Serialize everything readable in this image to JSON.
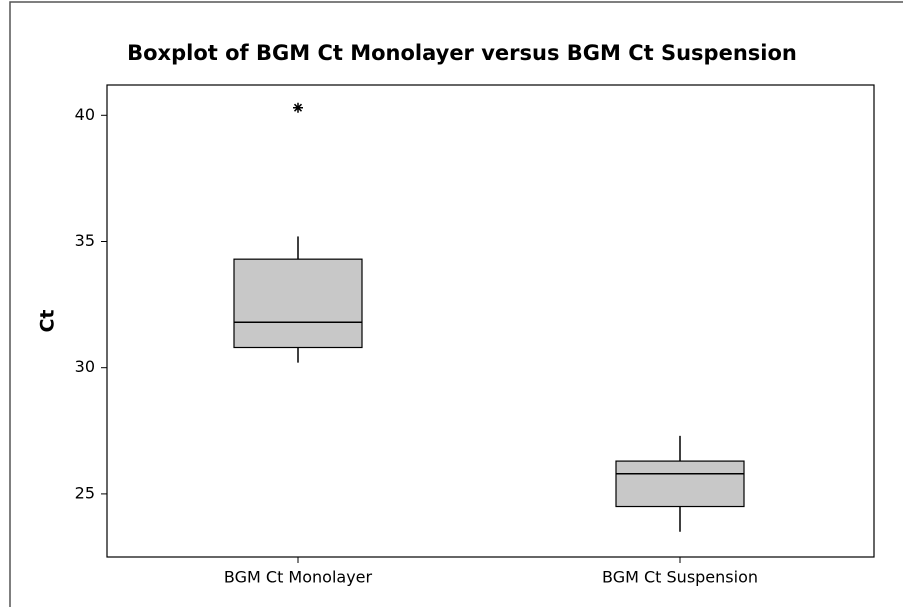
{
  "chart_data": {
    "type": "box",
    "title": "Boxplot of BGM Ct Monolayer versus BGM Ct Suspension",
    "ylabel": "Ct",
    "categories": [
      "BGM Ct Monolayer",
      "BGM Ct Suspension"
    ],
    "boxes": [
      {
        "whisker_low": 30.2,
        "q1": 30.8,
        "median": 31.8,
        "q3": 34.3,
        "whisker_high": 35.2,
        "outliers": [
          40.3
        ]
      },
      {
        "whisker_low": 23.5,
        "q1": 24.5,
        "median": 25.8,
        "q3": 26.3,
        "whisker_high": 27.3
      }
    ],
    "color": "#c8c8c8",
    "ylim": [
      22.5,
      41.2
    ],
    "yticks": [
      25,
      30,
      35,
      40
    ]
  }
}
